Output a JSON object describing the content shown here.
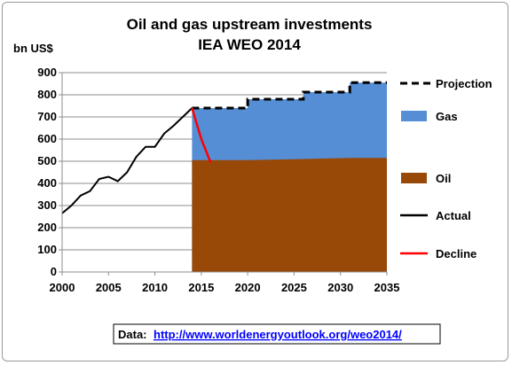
{
  "chart_data": {
    "type": "area",
    "title": "Oil and gas upstream investments",
    "subtitle": "IEA WEO 2014",
    "ylabel": "bn US$",
    "xlabel": "",
    "xlim": [
      2000,
      2035
    ],
    "ylim": [
      0,
      900
    ],
    "x_ticks": [
      "2000",
      "2005",
      "2010",
      "2015",
      "2020",
      "2025",
      "2030",
      "2035"
    ],
    "y_ticks": [
      "0",
      "100",
      "200",
      "300",
      "400",
      "500",
      "600",
      "700",
      "800",
      "900"
    ],
    "grid": "horizontal",
    "legend_placement": "right",
    "series": [
      {
        "name": "Projection",
        "style": "dashed",
        "color": "#000000",
        "x": [
          2014,
          2020,
          2020,
          2026,
          2026,
          2031,
          2031,
          2035
        ],
        "y": [
          740,
          740,
          780,
          780,
          812,
          812,
          855,
          855
        ]
      },
      {
        "name": "Gas",
        "style": "area",
        "color": "#558ed5",
        "x": [
          2014,
          2020,
          2020,
          2026,
          2026,
          2031,
          2031,
          2035
        ],
        "y": [
          740,
          740,
          780,
          780,
          812,
          812,
          855,
          855
        ]
      },
      {
        "name": "Oil",
        "style": "area",
        "color": "#984807",
        "x": [
          2014,
          2020,
          2026,
          2031,
          2035
        ],
        "y": [
          505,
          505,
          510,
          515,
          515
        ]
      },
      {
        "name": "Actual",
        "style": "line",
        "color": "#000000",
        "x": [
          2000,
          2001,
          2002,
          2003,
          2004,
          2005,
          2006,
          2007,
          2008,
          2009,
          2010,
          2011,
          2012,
          2013,
          2014
        ],
        "y": [
          265,
          300,
          345,
          365,
          420,
          430,
          410,
          450,
          520,
          565,
          565,
          625,
          660,
          700,
          740
        ]
      },
      {
        "name": "Decline",
        "style": "line",
        "color": "#ff0000",
        "x": [
          2014,
          2015,
          2016
        ],
        "y": [
          740,
          600,
          495
        ]
      }
    ],
    "source_label": "Data:",
    "source_url": "http://www.worldenergyoutlook.org/weo2014/"
  }
}
